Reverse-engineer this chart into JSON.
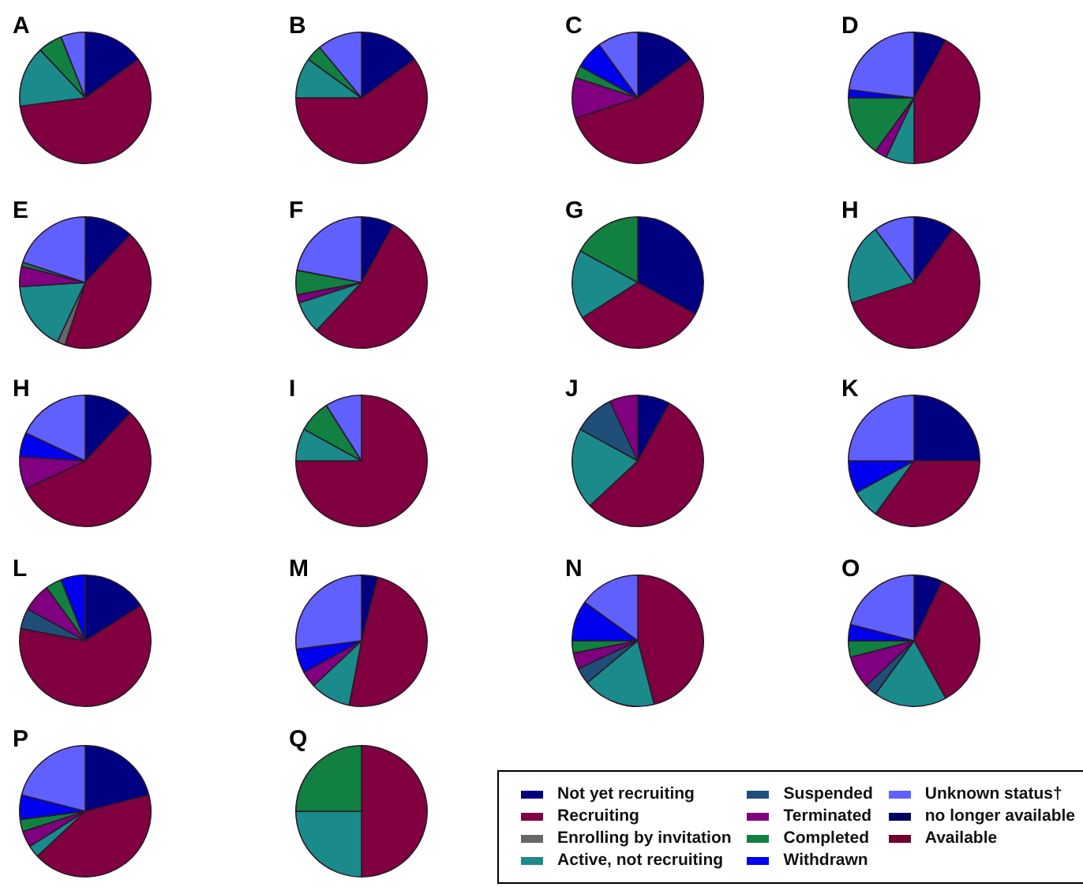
{
  "chart_data": [
    {
      "type": "pie",
      "title": "A",
      "categories": [
        null,
        null,
        null,
        null,
        null,
        null,
        null,
        null,
        null,
        null,
        null
      ],
      "values": [
        15,
        58,
        0,
        15,
        0,
        0,
        6,
        0,
        6,
        0,
        0
      ],
      "colors": [
        "#000080",
        "#800040",
        "#666666",
        "#1a8a8a",
        "#1f4e79",
        "#800080",
        "#118040",
        "#0000ee",
        "#6060ff",
        "#000060",
        "#700030"
      ]
    },
    {
      "type": "pie",
      "title": "B",
      "categories": [
        null,
        null,
        null,
        null,
        null,
        null,
        null,
        null,
        null,
        null,
        null
      ],
      "values": [
        15,
        60,
        0,
        10,
        0,
        0,
        4,
        0,
        11,
        0,
        0
      ],
      "colors": [
        "#000080",
        "#800040",
        "#666666",
        "#1a8a8a",
        "#1f4e79",
        "#800080",
        "#118040",
        "#0000ee",
        "#6060ff",
        "#000060",
        "#700030"
      ]
    },
    {
      "type": "pie",
      "title": "C",
      "categories": [
        null,
        null,
        null,
        null,
        null,
        null,
        null,
        null,
        null,
        null,
        null
      ],
      "values": [
        15,
        55,
        0,
        0,
        0,
        10,
        3,
        7,
        10,
        0,
        0
      ],
      "colors": [
        "#000080",
        "#800040",
        "#666666",
        "#1a8a8a",
        "#1f4e79",
        "#800080",
        "#118040",
        "#0000ee",
        "#6060ff",
        "#000060",
        "#700030"
      ]
    },
    {
      "type": "pie",
      "title": "D",
      "categories": [
        null,
        null,
        null,
        null,
        null,
        null,
        null,
        null,
        null,
        null,
        null
      ],
      "values": [
        8,
        42,
        0,
        7,
        0,
        3,
        15,
        2,
        23,
        0,
        0
      ],
      "colors": [
        "#000080",
        "#800040",
        "#666666",
        "#1a8a8a",
        "#1f4e79",
        "#800080",
        "#118040",
        "#0000ee",
        "#6060ff",
        "#000060",
        "#700030"
      ]
    },
    {
      "type": "pie",
      "title": "E",
      "categories": [
        null,
        null,
        null,
        null,
        null,
        null,
        null,
        null,
        null,
        null,
        null
      ],
      "values": [
        12,
        43,
        2,
        17,
        0,
        5,
        1,
        0,
        20,
        0,
        0
      ],
      "colors": [
        "#000080",
        "#800040",
        "#666666",
        "#1a8a8a",
        "#1f4e79",
        "#800080",
        "#118040",
        "#0000ee",
        "#6060ff",
        "#000060",
        "#700030"
      ]
    },
    {
      "type": "pie",
      "title": "F",
      "categories": [
        null,
        null,
        null,
        null,
        null,
        null,
        null,
        null,
        null,
        null,
        null
      ],
      "values": [
        8,
        54,
        0,
        8,
        0,
        2,
        6,
        0,
        22,
        0,
        0
      ],
      "colors": [
        "#000080",
        "#800040",
        "#666666",
        "#1a8a8a",
        "#1f4e79",
        "#800080",
        "#118040",
        "#0000ee",
        "#6060ff",
        "#000060",
        "#700030"
      ]
    },
    {
      "type": "pie",
      "title": "G",
      "categories": [
        null,
        null,
        null,
        null,
        null,
        null,
        null,
        null,
        null,
        null,
        null
      ],
      "values": [
        33,
        33,
        0,
        17,
        0,
        0,
        17,
        0,
        0,
        0,
        0
      ],
      "colors": [
        "#000080",
        "#800040",
        "#666666",
        "#1a8a8a",
        "#1f4e79",
        "#800080",
        "#118040",
        "#0000ee",
        "#6060ff",
        "#000060",
        "#700030"
      ]
    },
    {
      "type": "pie",
      "title": "H",
      "categories": [
        null,
        null,
        null,
        null,
        null,
        null,
        null,
        null,
        null,
        null,
        null
      ],
      "values": [
        10,
        60,
        0,
        20,
        0,
        0,
        0,
        0,
        10,
        0,
        0
      ],
      "colors": [
        "#000080",
        "#800040",
        "#666666",
        "#1a8a8a",
        "#1f4e79",
        "#800080",
        "#118040",
        "#0000ee",
        "#6060ff",
        "#000060",
        "#700030"
      ]
    },
    {
      "type": "pie",
      "title": "H",
      "categories": [
        null,
        null,
        null,
        null,
        null,
        null,
        null,
        null,
        null,
        null,
        null
      ],
      "values": [
        12,
        56,
        0,
        0,
        0,
        8,
        0,
        6,
        18,
        0,
        0
      ],
      "colors": [
        "#000080",
        "#800040",
        "#666666",
        "#1a8a8a",
        "#1f4e79",
        "#800080",
        "#118040",
        "#0000ee",
        "#6060ff",
        "#000060",
        "#700030"
      ]
    },
    {
      "type": "pie",
      "title": "I",
      "categories": [
        null,
        null,
        null,
        null,
        null,
        null,
        null,
        null,
        null,
        null,
        null
      ],
      "values": [
        0,
        75,
        0,
        8,
        0,
        0,
        8,
        0,
        9,
        0,
        0
      ],
      "colors": [
        "#000080",
        "#800040",
        "#666666",
        "#1a8a8a",
        "#1f4e79",
        "#800080",
        "#118040",
        "#0000ee",
        "#6060ff",
        "#000060",
        "#700030"
      ]
    },
    {
      "type": "pie",
      "title": "J",
      "categories": [
        null,
        null,
        null,
        null,
        null,
        null,
        null,
        null,
        null,
        null,
        null
      ],
      "values": [
        8,
        55,
        0,
        20,
        10,
        7,
        0,
        0,
        0,
        0,
        0
      ],
      "colors": [
        "#000080",
        "#800040",
        "#666666",
        "#1a8a8a",
        "#1f4e79",
        "#800080",
        "#118040",
        "#0000ee",
        "#6060ff",
        "#000060",
        "#700030"
      ]
    },
    {
      "type": "pie",
      "title": "K",
      "categories": [
        null,
        null,
        null,
        null,
        null,
        null,
        null,
        null,
        null,
        null,
        null
      ],
      "values": [
        25,
        35,
        0,
        7,
        0,
        0,
        0,
        8,
        25,
        0,
        0
      ],
      "colors": [
        "#000080",
        "#800040",
        "#666666",
        "#1a8a8a",
        "#1f4e79",
        "#800080",
        "#118040",
        "#0000ee",
        "#6060ff",
        "#000060",
        "#700030"
      ]
    },
    {
      "type": "pie",
      "title": "L",
      "categories": [
        null,
        null,
        null,
        null,
        null,
        null,
        null,
        null,
        null,
        null,
        null
      ],
      "values": [
        16,
        62,
        0,
        0,
        5,
        7,
        4,
        6,
        0,
        0,
        0
      ],
      "colors": [
        "#000080",
        "#800040",
        "#666666",
        "#1a8a8a",
        "#1f4e79",
        "#800080",
        "#118040",
        "#0000ee",
        "#6060ff",
        "#000060",
        "#700030"
      ]
    },
    {
      "type": "pie",
      "title": "M",
      "categories": [
        null,
        null,
        null,
        null,
        null,
        null,
        null,
        null,
        null,
        null,
        null
      ],
      "values": [
        4,
        49,
        0,
        10,
        0,
        4,
        0,
        6,
        27,
        0,
        0
      ],
      "colors": [
        "#000080",
        "#800040",
        "#666666",
        "#1a8a8a",
        "#1f4e79",
        "#800080",
        "#118040",
        "#0000ee",
        "#6060ff",
        "#000060",
        "#700030"
      ]
    },
    {
      "type": "pie",
      "title": "N",
      "categories": [
        null,
        null,
        null,
        null,
        null,
        null,
        null,
        null,
        null,
        null,
        null
      ],
      "values": [
        0,
        46,
        0,
        18,
        4,
        4,
        3,
        10,
        15,
        0,
        0
      ],
      "colors": [
        "#000080",
        "#800040",
        "#666666",
        "#1a8a8a",
        "#1f4e79",
        "#800080",
        "#118040",
        "#0000ee",
        "#6060ff",
        "#000060",
        "#700030"
      ]
    },
    {
      "type": "pie",
      "title": "O",
      "categories": [
        null,
        null,
        null,
        null,
        null,
        null,
        null,
        null,
        null,
        null,
        null
      ],
      "values": [
        7,
        35,
        0,
        18,
        3,
        8,
        4,
        4,
        21,
        0,
        0
      ],
      "colors": [
        "#000080",
        "#800040",
        "#666666",
        "#1a8a8a",
        "#1f4e79",
        "#800080",
        "#118040",
        "#0000ee",
        "#6060ff",
        "#000060",
        "#700030"
      ]
    },
    {
      "type": "pie",
      "title": "P",
      "categories": [
        null,
        null,
        null,
        null,
        null,
        null,
        null,
        null,
        null,
        null,
        null
      ],
      "values": [
        21,
        42,
        0,
        3,
        0,
        4,
        3,
        6,
        21,
        0,
        0
      ],
      "colors": [
        "#000080",
        "#800040",
        "#666666",
        "#1a8a8a",
        "#1f4e79",
        "#800080",
        "#118040",
        "#0000ee",
        "#6060ff",
        "#000060",
        "#700030"
      ]
    },
    {
      "type": "pie",
      "title": "Q",
      "categories": [
        "Not yet recruiting",
        "Recruiting",
        "Enrolling by invitation",
        "Active, not recruiting",
        "Suspended",
        "Terminated",
        "Completed",
        "Withdrawn",
        "Unknown status†",
        "no longer available",
        "Available"
      ],
      "values": [
        0,
        50,
        0,
        25,
        0,
        0,
        25,
        0,
        0,
        0,
        0
      ],
      "colors": [
        "#000080",
        "#800040",
        "#666666",
        "#1a8a8a",
        "#1f4e79",
        "#800080",
        "#118040",
        "#0000ee",
        "#6060ff",
        "#000060",
        "#700030"
      ],
      "legend": "right"
    }
  ]
}
